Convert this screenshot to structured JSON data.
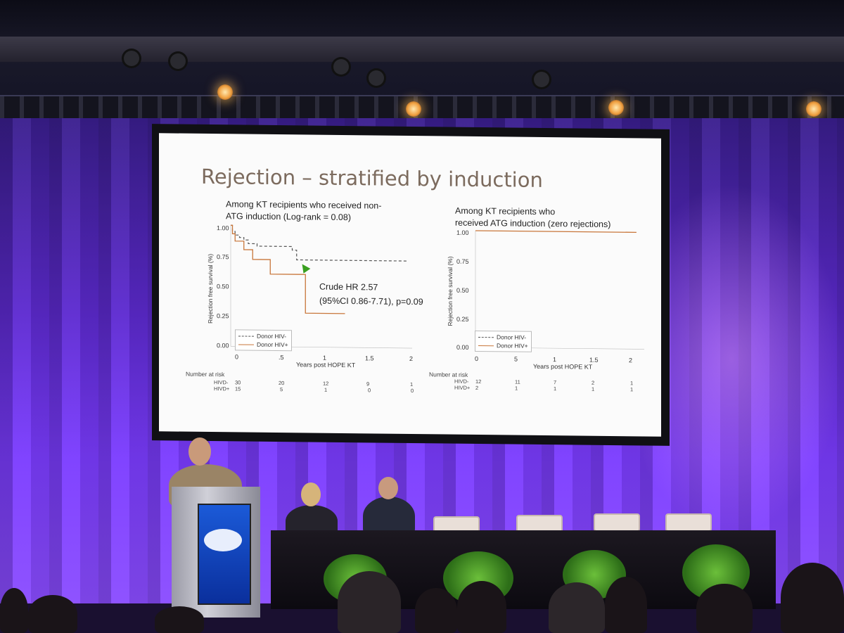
{
  "slide": {
    "title": "Rejection – stratified by induction",
    "left_panel": {
      "caption_line1": "Among KT recipients who received non-",
      "caption_line2": "ATG induction (Log-rank = 0.08)",
      "annotation_line1": "Crude HR 2.57",
      "annotation_line2": "(95%CI 0.86-7.71), p=0.09",
      "y_axis_label": "Rejection free survival (%)",
      "x_axis_label": "Years post HOPE KT",
      "y_ticks": [
        "1.00",
        "0.75",
        "0.50",
        "0.25",
        "0.00"
      ],
      "x_ticks": [
        "0",
        ".5",
        "1",
        "1.5",
        "2"
      ],
      "legend": [
        "Donor HIV-",
        "Donor HIV+"
      ],
      "risk_title": "Number at risk",
      "risk_rows": [
        {
          "label": "HIVD-",
          "values": [
            "30",
            "20",
            "12",
            "9",
            "1"
          ]
        },
        {
          "label": "HIVD+",
          "values": [
            "15",
            "5",
            "1",
            "0",
            "0"
          ]
        }
      ]
    },
    "right_panel": {
      "caption_line1": "Among KT recipients who",
      "caption_line2": "received ATG induction (zero rejections)",
      "y_axis_label": "Rejection free survival (%)",
      "x_axis_label": "Years post HOPE KT",
      "y_ticks": [
        "1.00",
        "0.75",
        "0.50",
        "0.25",
        "0.00"
      ],
      "x_ticks": [
        "0",
        "5",
        "1",
        "1.5",
        "2"
      ],
      "legend": [
        "Donor HIV-",
        "Donor HIV+"
      ],
      "risk_title": "Number at risk",
      "risk_rows": [
        {
          "label": "HIVD-",
          "values": [
            "12",
            "11",
            "7",
            "2",
            "1"
          ]
        },
        {
          "label": "HIVD+",
          "values": [
            "2",
            "1",
            "1",
            "1",
            "1"
          ]
        }
      ]
    }
  },
  "chart_data": [
    {
      "type": "line",
      "xlabel": "Years post HOPE KT",
      "ylabel": "Rejection free survival (%)",
      "xlim": [
        0,
        2
      ],
      "ylim": [
        0,
        1
      ],
      "series": [
        {
          "name": "Donor HIV-",
          "style": "dashed",
          "x": [
            0,
            0.02,
            0.05,
            0.1,
            0.15,
            0.2,
            0.3,
            0.7,
            0.75,
            2.0
          ],
          "y": [
            1.0,
            0.95,
            0.92,
            0.9,
            0.88,
            0.85,
            0.83,
            0.8,
            0.72,
            0.72
          ]
        },
        {
          "name": "Donor HIV+",
          "style": "solid",
          "x": [
            0,
            0.02,
            0.05,
            0.15,
            0.25,
            0.45,
            0.82,
            0.85,
            1.3
          ],
          "y": [
            1.0,
            0.93,
            0.87,
            0.8,
            0.72,
            0.6,
            0.6,
            0.28,
            0.28
          ]
        }
      ]
    },
    {
      "type": "line",
      "xlabel": "Years post HOPE KT",
      "ylabel": "Rejection free survival (%)",
      "xlim": [
        0,
        2
      ],
      "ylim": [
        0,
        1
      ],
      "series": [
        {
          "name": "Donor HIV+",
          "style": "solid",
          "x": [
            0,
            2.1
          ],
          "y": [
            1.0,
            1.0
          ]
        }
      ]
    }
  ],
  "colors": {
    "title": "#7c6b5e",
    "hiv_pos_line": "#c8763a",
    "hiv_neg_line": "#555555",
    "curtain": "#6a34e0",
    "podium_screen": "#1b5ad8"
  }
}
